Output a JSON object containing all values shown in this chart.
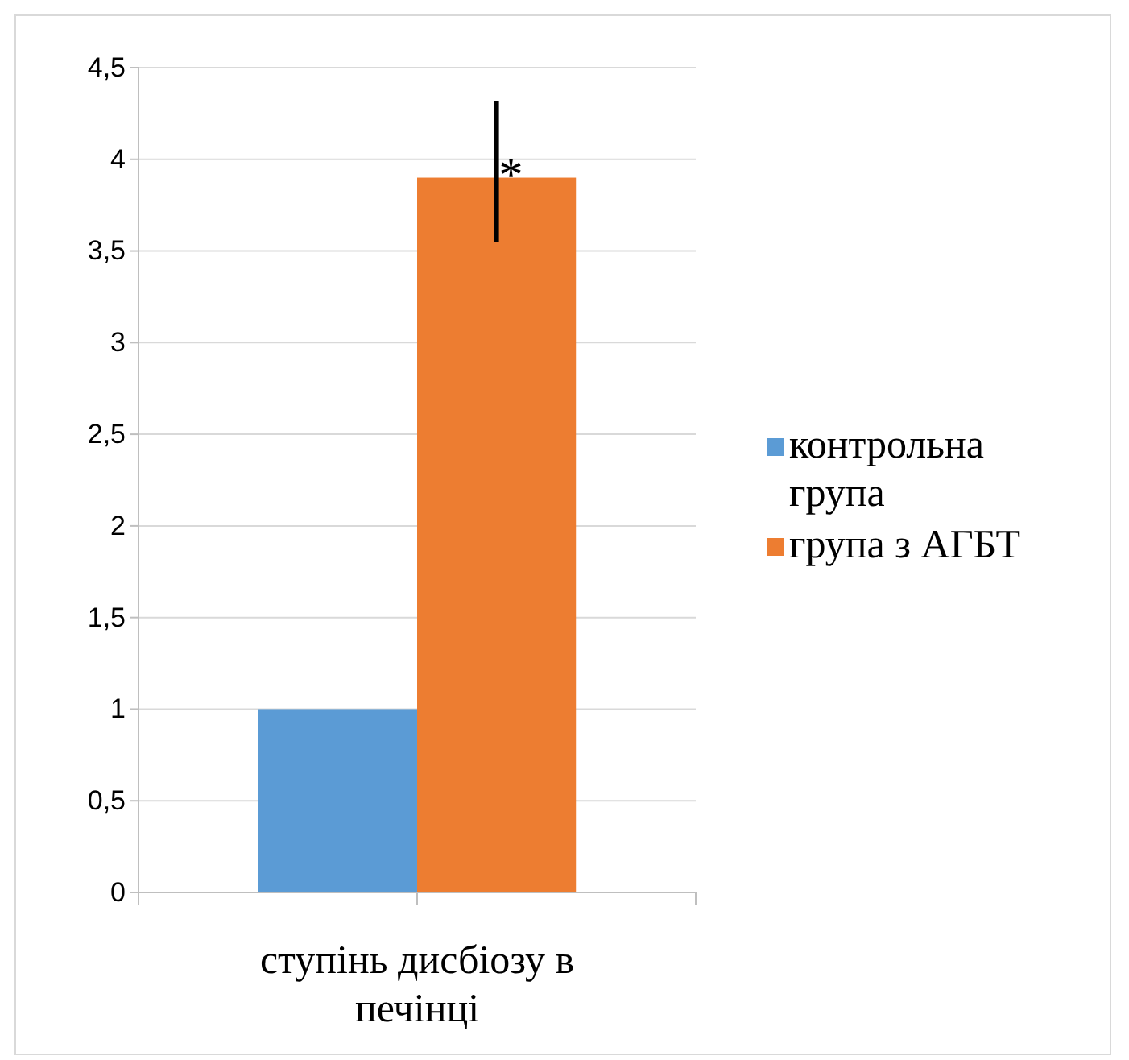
{
  "chart_data": {
    "type": "bar",
    "categories": [
      "ступінь дисбіозу в печінці"
    ],
    "series": [
      {
        "name": "контрольна група",
        "color": "#5b9bd5",
        "values": [
          1
        ]
      },
      {
        "name": "група з АГБТ",
        "color": "#ed7d31",
        "values": [
          3.9
        ],
        "errors": [
          [
            3.55,
            4.32
          ]
        ]
      }
    ],
    "ylim": [
      0,
      4.5
    ],
    "yticks": [
      0,
      {
        "value": 0.5,
        "label": "0,5"
      },
      1,
      {
        "value": 1.5,
        "label": "1,5"
      },
      2,
      {
        "value": 2.5,
        "label": "2,5"
      },
      3,
      {
        "value": 3.5,
        "label": "3,5"
      },
      4,
      {
        "value": 4.5,
        "label": "4,5"
      }
    ],
    "grid": "y",
    "legend": "right",
    "annotations": [
      {
        "text": "*",
        "x": "ступінь дисбіозу в печінці",
        "y": 3.9
      }
    ]
  }
}
